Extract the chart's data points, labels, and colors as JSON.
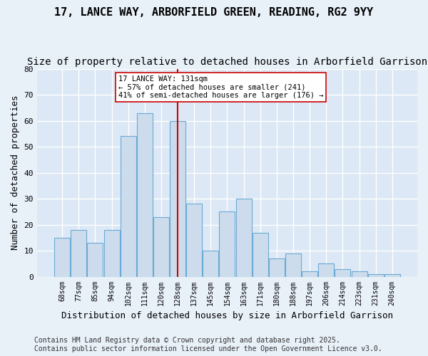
{
  "title": "17, LANCE WAY, ARBORFIELD GREEN, READING, RG2 9YY",
  "subtitle": "Size of property relative to detached houses in Arborfield Garrison",
  "xlabel": "Distribution of detached houses by size in Arborfield Garrison",
  "ylabel": "Number of detached properties",
  "categories": [
    "68sqm",
    "77sqm",
    "85sqm",
    "94sqm",
    "102sqm",
    "111sqm",
    "120sqm",
    "128sqm",
    "137sqm",
    "145sqm",
    "154sqm",
    "163sqm",
    "171sqm",
    "180sqm",
    "188sqm",
    "197sqm",
    "206sqm",
    "214sqm",
    "223sqm",
    "231sqm",
    "240sqm"
  ],
  "values": [
    15,
    18,
    13,
    18,
    54,
    63,
    23,
    60,
    28,
    10,
    25,
    30,
    17,
    7,
    9,
    2,
    5,
    3,
    2,
    1,
    1
  ],
  "bar_color": "#ccdcec",
  "bar_edge_color": "#6aaad4",
  "property_line_x": 7,
  "annotation_line1": "17 LANCE WAY: 131sqm",
  "annotation_line2": "← 57% of detached houses are smaller (241)",
  "annotation_line3": "41% of semi-detached houses are larger (176) →",
  "annotation_box_color": "#ffffff",
  "annotation_box_edge": "#cc0000",
  "vline_color": "#cc0000",
  "ylim": [
    0,
    80
  ],
  "yticks": [
    0,
    10,
    20,
    30,
    40,
    50,
    60,
    70,
    80
  ],
  "footer": "Contains HM Land Registry data © Crown copyright and database right 2025.\nContains public sector information licensed under the Open Government Licence v3.0.",
  "bg_color": "#e8f0f8",
  "plot_bg_color": "#dce8f5",
  "grid_color": "#ffffff",
  "title_fontsize": 11,
  "subtitle_fontsize": 10,
  "label_fontsize": 9,
  "tick_fontsize": 8,
  "footer_fontsize": 7
}
